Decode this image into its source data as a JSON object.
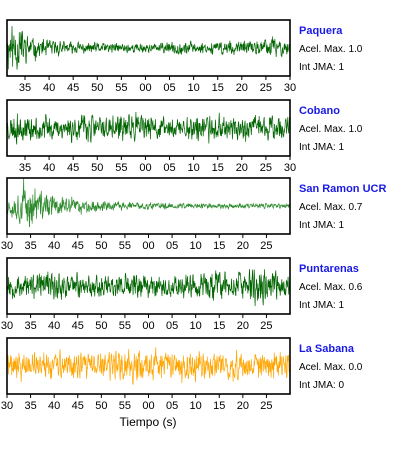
{
  "chart_data": [
    {
      "type": "line",
      "station": "Paquera",
      "acel_label": "Acel. Max. 1.0",
      "jma_label": "Int JMA: 1",
      "color": "#006400",
      "tick_labels": [
        "35",
        "40",
        "45",
        "50",
        "55",
        "00",
        "05",
        "10",
        "15",
        "20",
        "25",
        "30"
      ],
      "envelope": [
        0.95,
        0.95,
        0.55,
        0.4,
        0.35,
        0.3,
        0.28,
        0.25,
        0.25,
        0.22,
        0.22,
        0.2,
        0.2,
        0.2,
        0.2,
        0.2,
        0.18,
        0.2,
        0.22,
        0.25,
        0.22,
        0.2,
        0.22,
        0.25,
        0.28,
        0.3,
        0.3,
        0.3,
        0.3,
        0.6,
        0.35,
        0.3
      ],
      "seed": 11
    },
    {
      "type": "line",
      "station": "Cobano",
      "acel_label": "Acel. Max. 1.0",
      "jma_label": "Int JMA: 1",
      "color": "#006400",
      "tick_labels": [
        "35",
        "40",
        "45",
        "50",
        "55",
        "00",
        "05",
        "10",
        "15",
        "20",
        "25",
        "30"
      ],
      "envelope": [
        0.55,
        0.55,
        0.5,
        0.5,
        0.5,
        0.45,
        0.45,
        0.5,
        0.5,
        0.55,
        0.5,
        0.45,
        0.5,
        0.5,
        0.55,
        0.5,
        0.5,
        0.45,
        0.45,
        0.5,
        0.5,
        0.45,
        0.45,
        0.45,
        0.5,
        0.5,
        0.45,
        0.45,
        0.5,
        0.5,
        0.45,
        0.45
      ],
      "seed": 23
    },
    {
      "type": "line",
      "station": "San Ramon UCR",
      "acel_label": "Acel. Max. 0.7",
      "jma_label": "Int JMA: 1",
      "color": "#2e8b2e",
      "tick_labels": [
        "30",
        "35",
        "40",
        "45",
        "50",
        "55",
        "00",
        "05",
        "10",
        "15",
        "20",
        "25"
      ],
      "envelope": [
        0.25,
        0.6,
        0.95,
        0.8,
        0.55,
        0.45,
        0.38,
        0.32,
        0.28,
        0.25,
        0.22,
        0.2,
        0.18,
        0.17,
        0.16,
        0.15,
        0.14,
        0.13,
        0.12,
        0.12,
        0.11,
        0.1,
        0.1,
        0.1,
        0.1,
        0.1,
        0.1,
        0.1,
        0.1,
        0.1,
        0.1,
        0.1
      ],
      "seed": 37
    },
    {
      "type": "line",
      "station": "Puntarenas",
      "acel_label": "Acel. Max. 0.6",
      "jma_label": "Int JMA: 1",
      "color": "#006400",
      "tick_labels": [
        "30",
        "35",
        "40",
        "45",
        "50",
        "55",
        "00",
        "05",
        "10",
        "15",
        "20",
        "25"
      ],
      "envelope": [
        0.45,
        0.5,
        0.5,
        0.45,
        0.5,
        0.55,
        0.5,
        0.45,
        0.5,
        0.45,
        0.5,
        0.45,
        0.45,
        0.5,
        0.55,
        0.5,
        0.5,
        0.45,
        0.5,
        0.5,
        0.45,
        0.5,
        0.55,
        0.6,
        0.6,
        0.6,
        0.6,
        0.7,
        0.85,
        0.6,
        0.55,
        0.5
      ],
      "seed": 53
    },
    {
      "type": "line",
      "station": "La Sabana",
      "acel_label": "Acel. Max. 0.0",
      "jma_label": "Int JMA: 0",
      "color": "#ffa500",
      "tick_labels": [
        "30",
        "35",
        "40",
        "45",
        "50",
        "55",
        "00",
        "05",
        "10",
        "15",
        "20",
        "25"
      ],
      "envelope": [
        0.55,
        0.55,
        0.5,
        0.55,
        0.5,
        0.55,
        0.55,
        0.5,
        0.55,
        0.5,
        0.55,
        0.55,
        0.55,
        0.65,
        0.75,
        0.6,
        0.55,
        0.55,
        0.5,
        0.55,
        0.5,
        0.55,
        0.5,
        0.55,
        0.55,
        0.5,
        0.55,
        0.5,
        0.5,
        0.55,
        0.5,
        0.5
      ],
      "seed": 71
    }
  ],
  "xlabel": "Tiempo (s)"
}
